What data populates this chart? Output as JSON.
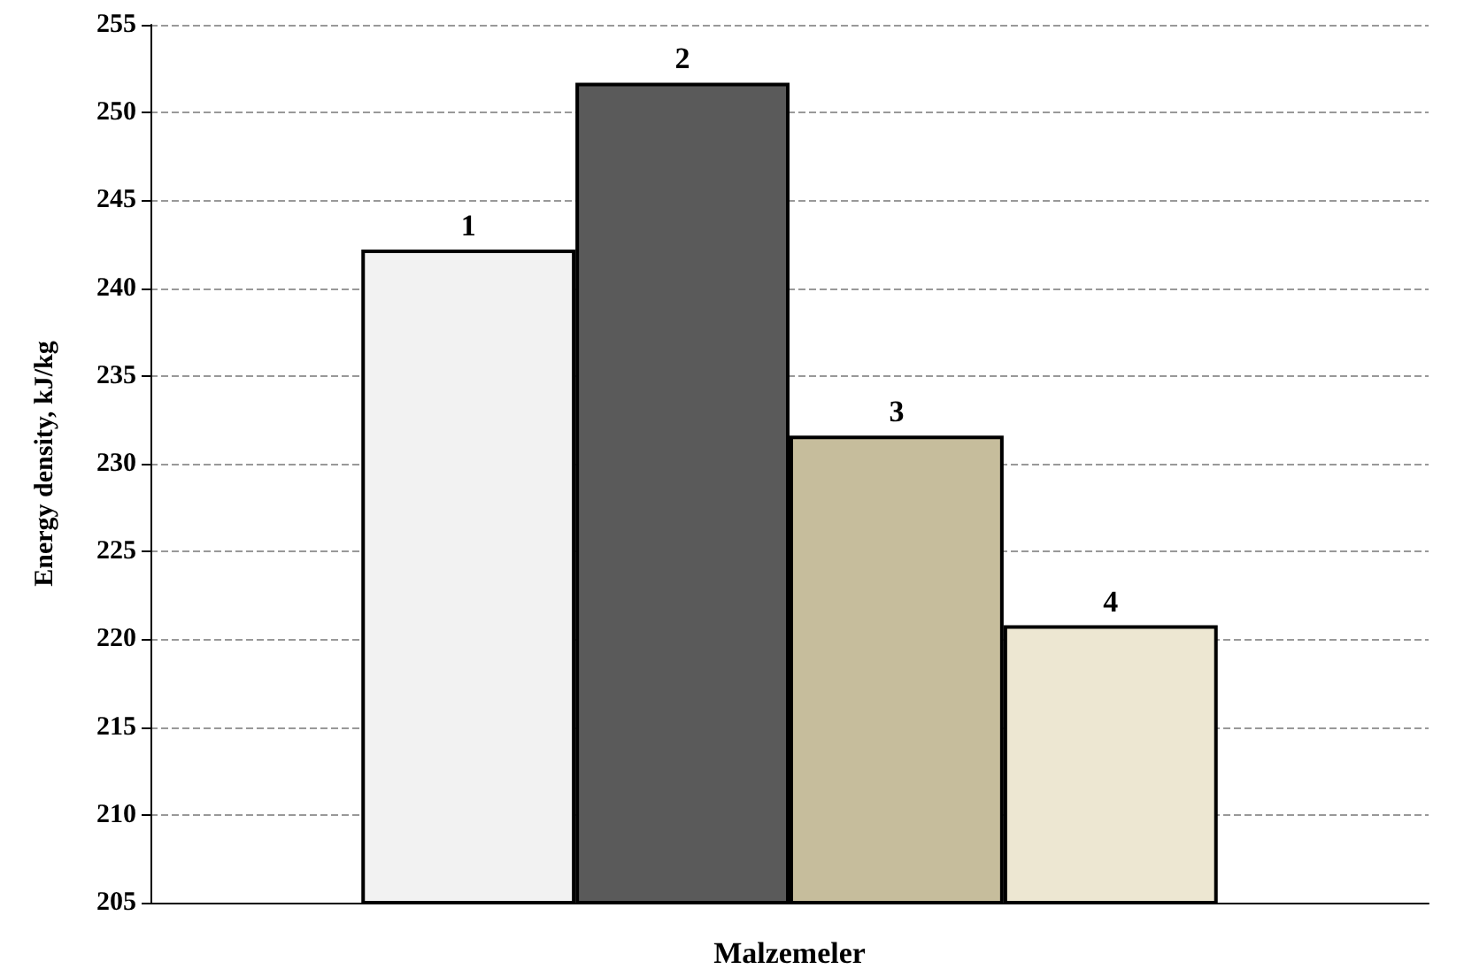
{
  "chart_data": {
    "type": "bar",
    "xlabel": "Malzemeler",
    "ylabel": "Energy density, kJ/kg",
    "categories": [
      null
    ],
    "series": [
      {
        "name": "1",
        "color": "#f2f2f2",
        "values": [
          242.2
        ]
      },
      {
        "name": "2",
        "color": "#5a5a5a",
        "values": [
          251.7
        ]
      },
      {
        "name": "3",
        "color": "#c6bd9c",
        "values": [
          231.6
        ]
      },
      {
        "name": "4",
        "color": "#ede7d2",
        "values": [
          220.8
        ]
      }
    ],
    "ylim": [
      205,
      255
    ],
    "yticks": [
      205,
      210,
      215,
      220,
      225,
      230,
      235,
      240,
      245,
      250,
      255
    ],
    "grid": "y"
  }
}
